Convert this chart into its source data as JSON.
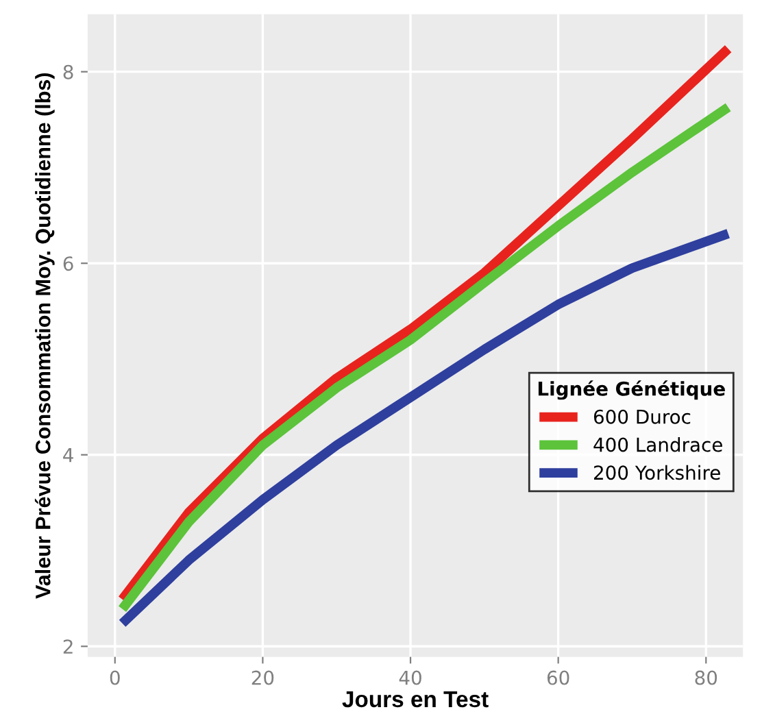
{
  "chart_data": {
    "type": "line",
    "xlabel": "Jours en Test",
    "ylabel": "Valeur Prévue Consommation Moy. Quotidienne (lbs)",
    "legend_title": "Lignée Génétique",
    "x": [
      1,
      10,
      20,
      30,
      40,
      50,
      60,
      70,
      83
    ],
    "series": [
      {
        "name": "600 Duroc",
        "color": "#e8231e",
        "values": [
          2.49,
          3.4,
          4.17,
          4.8,
          5.31,
          5.9,
          6.6,
          7.3,
          8.24
        ]
      },
      {
        "name": "400 Landrace",
        "color": "#5cc33a",
        "values": [
          2.39,
          3.3,
          4.1,
          4.7,
          5.2,
          5.8,
          6.39,
          6.95,
          7.63
        ]
      },
      {
        "name": "200 Yorkshire",
        "color": "#2f3f9e",
        "values": [
          2.24,
          2.9,
          3.53,
          4.1,
          4.6,
          5.1,
          5.57,
          5.95,
          6.31
        ]
      }
    ],
    "xlim": [
      -3.7,
      85
    ],
    "ylim": [
      1.89,
      8.6
    ],
    "xticks": [
      0,
      20,
      40,
      60,
      80
    ],
    "yticks": [
      2,
      4,
      6,
      8
    ],
    "grid": true,
    "legend": "center right",
    "marker": "none",
    "line_style": "solid"
  }
}
